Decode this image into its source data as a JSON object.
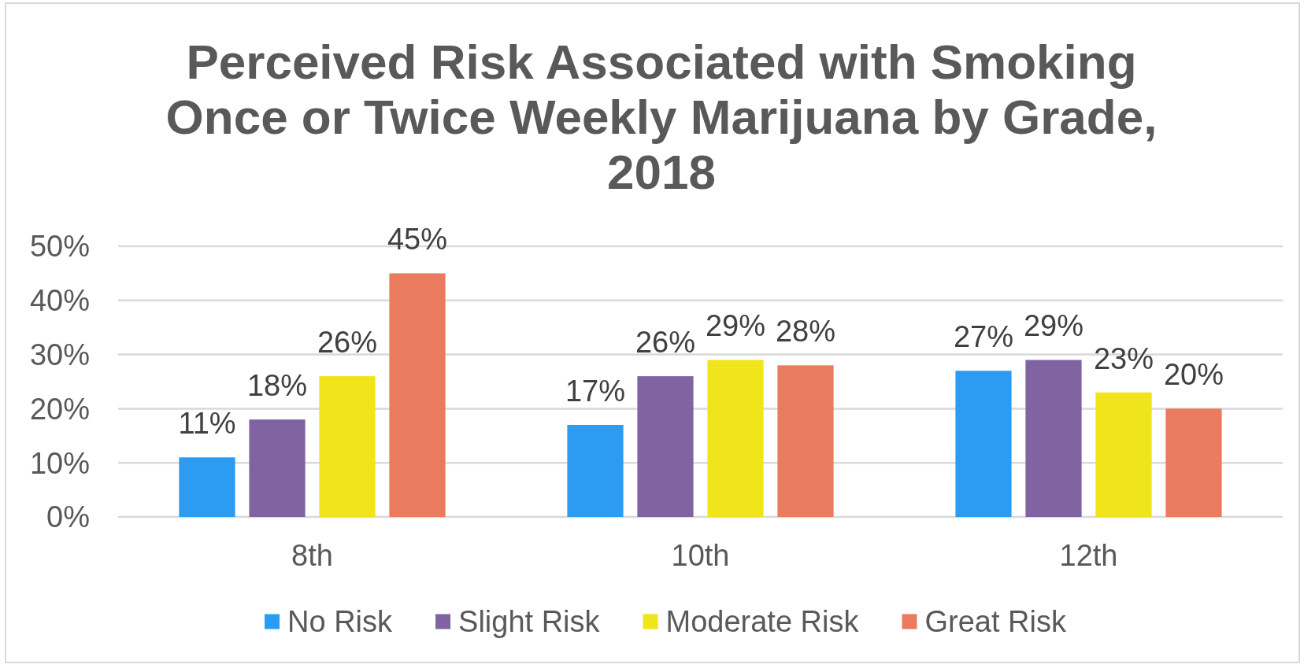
{
  "chart_data": {
    "type": "bar",
    "title": "Perceived Risk Associated with Smoking Once or Twice Weekly Marijuana by Grade, 2018",
    "categories": [
      "8th",
      "10th",
      "12th"
    ],
    "series": [
      {
        "name": "No Risk",
        "color": "#2b9cf2",
        "values": [
          11,
          17,
          27
        ],
        "value_labels": [
          "11%",
          "17%",
          "27%"
        ]
      },
      {
        "name": "Slight Risk",
        "color": "#8064a2",
        "values": [
          18,
          26,
          29
        ],
        "value_labels": [
          "18%",
          "26%",
          "29%"
        ]
      },
      {
        "name": "Moderate Risk",
        "color": "#f0e41a",
        "values": [
          26,
          29,
          23
        ],
        "value_labels": [
          "26%",
          "29%",
          "23%"
        ]
      },
      {
        "name": "Great Risk",
        "color": "#e97c5e",
        "values": [
          45,
          28,
          20
        ],
        "value_labels": [
          "45%",
          "28%",
          "20%"
        ]
      }
    ],
    "ylim": [
      0,
      50
    ],
    "yticks": [
      {
        "value": 0,
        "label": "0%"
      },
      {
        "value": 10,
        "label": "10%"
      },
      {
        "value": 20,
        "label": "20%"
      },
      {
        "value": 30,
        "label": "30%"
      },
      {
        "value": 40,
        "label": "40%"
      },
      {
        "value": 50,
        "label": "50%"
      }
    ],
    "grid": "y",
    "legend": "bottom"
  }
}
